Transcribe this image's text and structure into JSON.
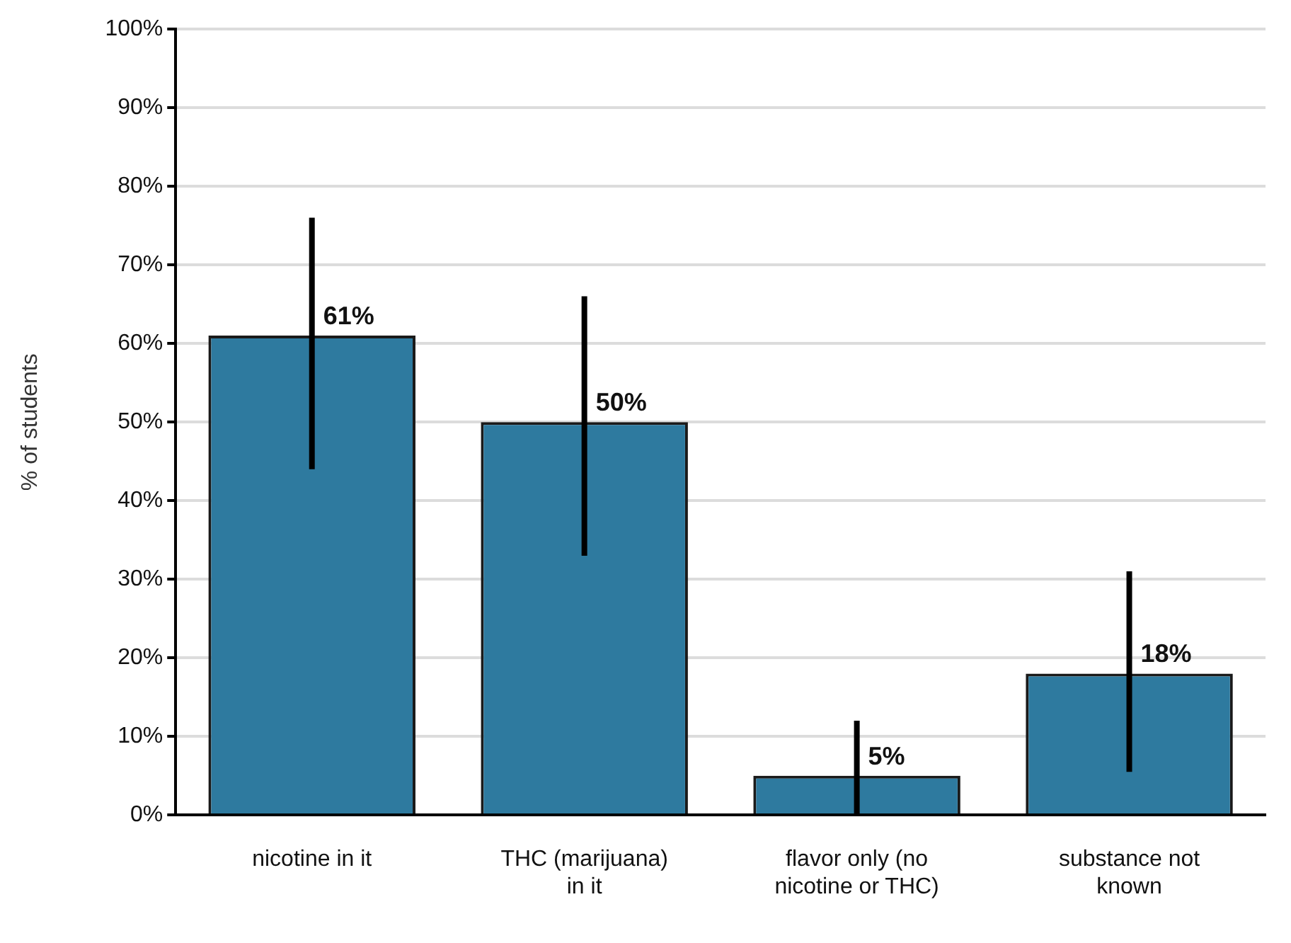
{
  "chart_data": {
    "type": "bar",
    "ylabel": "% of students",
    "categories": [
      "nicotine in it",
      "THC (marijuana) in it",
      "flavor only (no nicotine or THC)",
      "substance not known"
    ],
    "values": [
      61,
      50,
      5,
      18
    ],
    "color": "#2e7a9f",
    "errors": [
      [
        44,
        76
      ],
      [
        33,
        66
      ],
      [
        0,
        12
      ],
      [
        5.5,
        31
      ]
    ],
    "value_labels": [
      "61%",
      "50%",
      "5%",
      "18%"
    ],
    "ylim": [
      0,
      100
    ],
    "yticks": [
      {
        "value": 0,
        "label": "0%"
      },
      {
        "value": 10,
        "label": "10%"
      },
      {
        "value": 20,
        "label": "20%"
      },
      {
        "value": 30,
        "label": "30%"
      },
      {
        "value": 40,
        "label": "40%"
      },
      {
        "value": 50,
        "label": "50%"
      },
      {
        "value": 60,
        "label": "60%"
      },
      {
        "value": 70,
        "label": "70%"
      },
      {
        "value": 80,
        "label": "80%"
      },
      {
        "value": 90,
        "label": "90%"
      },
      {
        "value": 100,
        "label": "100%"
      }
    ],
    "grid": "y",
    "legend": false
  }
}
